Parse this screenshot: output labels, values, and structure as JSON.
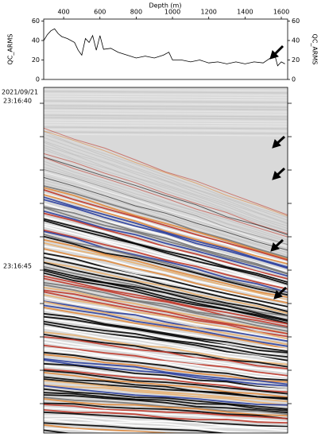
{
  "chart_data": {
    "type": "line",
    "x_label": "Depth (m)",
    "y_label": "QC_ARMS",
    "y2_label": "QC_ARMS",
    "x": [
      290,
      310,
      330,
      350,
      370,
      390,
      420,
      460,
      480,
      500,
      520,
      540,
      560,
      580,
      600,
      620,
      660,
      700,
      750,
      800,
      850,
      900,
      950,
      980,
      1000,
      1050,
      1100,
      1150,
      1200,
      1250,
      1300,
      1350,
      1400,
      1450,
      1500,
      1540,
      1560,
      1580,
      1600,
      1620
    ],
    "series": [
      {
        "name": "QC_ARMS",
        "color": "#000000",
        "values": [
          40,
          46,
          50,
          52,
          47,
          44,
          42,
          38,
          30,
          25,
          42,
          38,
          45,
          30,
          45,
          31,
          32,
          28,
          25,
          22,
          24,
          22,
          25,
          28,
          20,
          20,
          18,
          20,
          17,
          18,
          16,
          18,
          16,
          18,
          17,
          22,
          28,
          14,
          18,
          16
        ]
      }
    ],
    "xlim": [
      290,
      1635
    ],
    "xticks": [
      400,
      600,
      800,
      1000,
      1200,
      1400,
      1600
    ],
    "ylim": [
      0,
      62
    ],
    "yticks": [
      0,
      20,
      40,
      60
    ],
    "y2lim": [
      0,
      62
    ],
    "y2ticks": [
      0,
      20,
      40,
      60
    ]
  },
  "waterfall": {
    "date": "2021/09/21",
    "time_labels": [
      "23:16:40",
      "23:16:45"
    ]
  }
}
